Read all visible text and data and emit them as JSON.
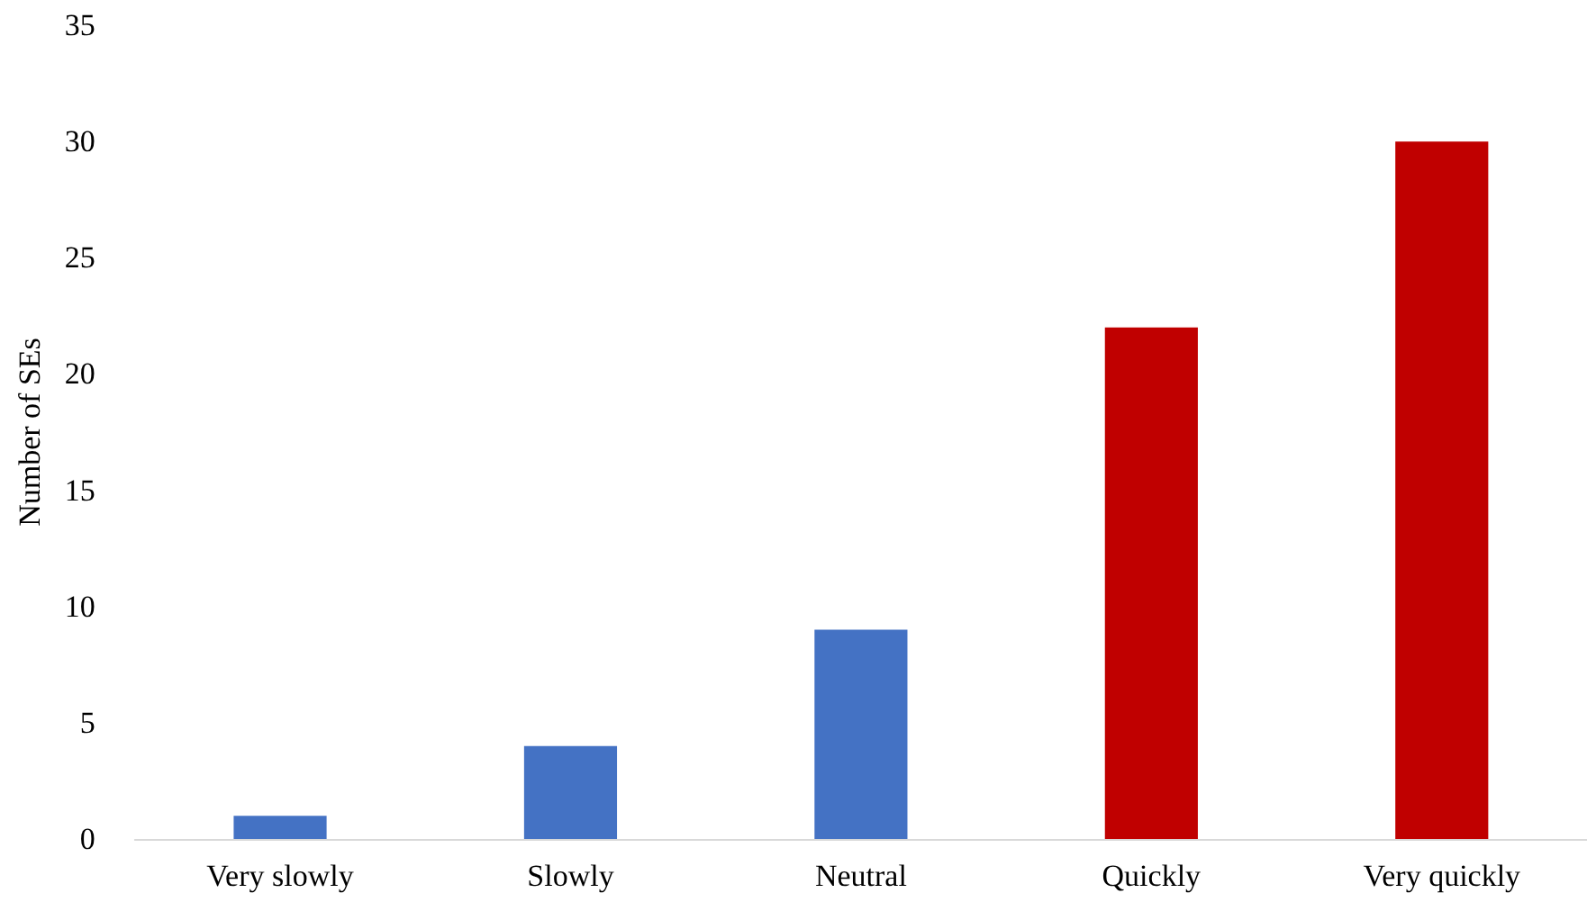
{
  "chart_data": {
    "type": "bar",
    "ylabel": "Number of SEs",
    "categories": [
      "Very slowly",
      "Slowly",
      "Neutral",
      "Quickly",
      "Very quickly"
    ],
    "values": [
      1,
      4,
      9,
      22,
      30
    ],
    "colors": [
      "#4472c4",
      "#4472c4",
      "#4472c4",
      "#c00000",
      "#c00000"
    ],
    "ylim": [
      0,
      35
    ],
    "yticks": [
      0,
      5,
      10,
      15,
      20,
      25,
      30,
      35
    ]
  }
}
